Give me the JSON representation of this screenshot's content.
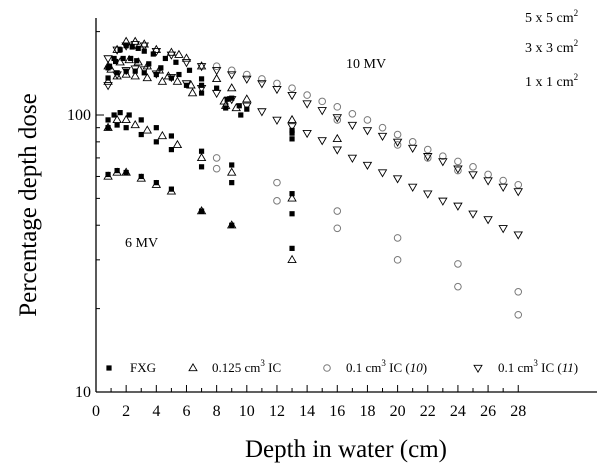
{
  "chart_data": {
    "type": "scatter",
    "xlabel": "Depth in water (cm)",
    "ylabel": "Percentage depth dose",
    "y_scale": "log",
    "xlim": [
      0,
      29.5
    ],
    "ylim": [
      10,
      200
    ],
    "x_ticks": [
      "0",
      "2",
      "4",
      "6",
      "8",
      "10",
      "12",
      "14",
      "16",
      "18",
      "20",
      "22",
      "24",
      "26",
      "28"
    ],
    "y_ticks": [
      "10",
      "100"
    ],
    "annotations": {
      "field_sizes": [
        "5 x 5 cm",
        "3 x 3 cm",
        "1 x 1 cm"
      ],
      "energy_10": "10 MV",
      "energy_6": "6 MV"
    },
    "legend": [
      {
        "label": "FXG",
        "marker": "filled-square"
      },
      {
        "label_main": "0.125 cm",
        "label_sup": "3",
        "label_tail": " IC",
        "marker": "triangle-up"
      },
      {
        "label_main": "0.1 cm",
        "label_sup": "3",
        "label_tail": " IC (",
        "label_italic": "10",
        "label_close": ")",
        "marker": "circle"
      },
      {
        "label_main": "0.1 cm",
        "label_sup": "3",
        "label_tail": " IC (",
        "label_italic": "11",
        "label_close": ")",
        "marker": "triangle-down"
      }
    ],
    "series": [
      {
        "name": "FXG",
        "marker": "filled-square",
        "points": [
          [
            0.8,
            148
          ],
          [
            1.2,
            160
          ],
          [
            1.6,
            172
          ],
          [
            2.0,
            178
          ],
          [
            2.4,
            176
          ],
          [
            2.8,
            174
          ],
          [
            3.2,
            170
          ],
          [
            3.8,
            166
          ],
          [
            4.6,
            160
          ],
          [
            5.3,
            155
          ],
          [
            6.2,
            145
          ],
          [
            7.0,
            135
          ],
          [
            8.0,
            125
          ],
          [
            9.0,
            115
          ],
          [
            10.0,
            105
          ],
          [
            13.0,
            86
          ],
          [
            0.9,
            150
          ],
          [
            1.3,
            156
          ],
          [
            1.8,
            160
          ],
          [
            2.3,
            160
          ],
          [
            2.7,
            157
          ],
          [
            3.5,
            153
          ],
          [
            4.3,
            148
          ],
          [
            5.5,
            140
          ],
          [
            7.0,
            128
          ],
          [
            8.7,
            114
          ],
          [
            9.5,
            108
          ],
          [
            13.0,
            88
          ],
          [
            0.8,
            136
          ],
          [
            1.4,
            142
          ],
          [
            2.0,
            144
          ],
          [
            2.6,
            144
          ],
          [
            3.2,
            142
          ],
          [
            4.0,
            140
          ],
          [
            5.0,
            136
          ],
          [
            6.0,
            128
          ],
          [
            7.0,
            120
          ],
          [
            8.6,
            106
          ],
          [
            9.6,
            100
          ],
          [
            13.0,
            82
          ],
          [
            0.8,
            96
          ],
          [
            1.2,
            100
          ],
          [
            1.6,
            102
          ],
          [
            2.2,
            100
          ],
          [
            3.0,
            96
          ],
          [
            4.0,
            90
          ],
          [
            5.0,
            84
          ],
          [
            7.0,
            74
          ],
          [
            9.0,
            66
          ],
          [
            13.0,
            52
          ],
          [
            0.8,
            90
          ],
          [
            1.4,
            92
          ],
          [
            2.0,
            90
          ],
          [
            3.0,
            85
          ],
          [
            4.0,
            80
          ],
          [
            5.0,
            75
          ],
          [
            7.0,
            65
          ],
          [
            9.0,
            57
          ],
          [
            13.0,
            44
          ],
          [
            0.8,
            61
          ],
          [
            1.4,
            63
          ],
          [
            2.0,
            62
          ],
          [
            3.0,
            60
          ],
          [
            4.0,
            57
          ],
          [
            5.0,
            54
          ],
          [
            7.0,
            45
          ],
          [
            9.0,
            40
          ],
          [
            13.0,
            33
          ]
        ]
      },
      {
        "name": "0.125 cm3 IC",
        "marker": "triangle-up",
        "points": [
          [
            0.8,
            150
          ],
          [
            1.4,
            172
          ],
          [
            2.0,
            184
          ],
          [
            2.6,
            184
          ],
          [
            3.2,
            180
          ],
          [
            4.0,
            172
          ],
          [
            5.0,
            168
          ],
          [
            5.5,
            165
          ],
          [
            6.0,
            160
          ],
          [
            7.0,
            150
          ],
          [
            8.0,
            135
          ],
          [
            9.0,
            125
          ],
          [
            10.0,
            114
          ],
          [
            13.0,
            96
          ],
          [
            16.0,
            82
          ],
          [
            1.0,
            146
          ],
          [
            1.6,
            155
          ],
          [
            2.2,
            158
          ],
          [
            2.8,
            155
          ],
          [
            3.4,
            150
          ],
          [
            4.2,
            145
          ],
          [
            4.8,
            138
          ],
          [
            5.4,
            132
          ],
          [
            6.3,
            128
          ],
          [
            8.5,
            112
          ],
          [
            9.3,
            106
          ],
          [
            0.8,
            132
          ],
          [
            1.4,
            138
          ],
          [
            2.0,
            140
          ],
          [
            2.6,
            138
          ],
          [
            3.4,
            136
          ],
          [
            4.4,
            132
          ],
          [
            6.4,
            120
          ],
          [
            8.6,
            108
          ],
          [
            0.8,
            90
          ],
          [
            1.4,
            96
          ],
          [
            2.0,
            96
          ],
          [
            2.6,
            92
          ],
          [
            3.4,
            88
          ],
          [
            4.4,
            84
          ],
          [
            5.4,
            78
          ],
          [
            7.0,
            70
          ],
          [
            9.0,
            62
          ],
          [
            13.0,
            50
          ],
          [
            0.8,
            60
          ],
          [
            1.4,
            62
          ],
          [
            2.0,
            62
          ],
          [
            3.0,
            59
          ],
          [
            4.0,
            56
          ],
          [
            5.0,
            53
          ],
          [
            7.0,
            45
          ],
          [
            9.0,
            40
          ],
          [
            13.0,
            30
          ]
        ]
      },
      {
        "name": "0.1 cm3 IC (10)",
        "marker": "circle",
        "points": [
          [
            8.0,
            150
          ],
          [
            9.0,
            145
          ],
          [
            10.0,
            140
          ],
          [
            11.0,
            135
          ],
          [
            12.0,
            130
          ],
          [
            13.0,
            125
          ],
          [
            14.0,
            118
          ],
          [
            15.0,
            112
          ],
          [
            16.0,
            107
          ],
          [
            17.0,
            101
          ],
          [
            18.0,
            96
          ],
          [
            19.0,
            90
          ],
          [
            20.0,
            85
          ],
          [
            21.0,
            80
          ],
          [
            22.0,
            75
          ],
          [
            23.0,
            71
          ],
          [
            24.0,
            68
          ],
          [
            25.0,
            65
          ],
          [
            26.0,
            61
          ],
          [
            27.0,
            58
          ],
          [
            28.0,
            56
          ],
          [
            16.0,
            96
          ],
          [
            20.0,
            78
          ],
          [
            22.0,
            70
          ],
          [
            24.0,
            63
          ],
          [
            8.0,
            70
          ],
          [
            12.0,
            57
          ],
          [
            16.0,
            45
          ],
          [
            20.0,
            36
          ],
          [
            24.0,
            29
          ],
          [
            28.0,
            23
          ],
          [
            8.0,
            64
          ],
          [
            12.0,
            49
          ],
          [
            16.0,
            39
          ],
          [
            20.0,
            30
          ],
          [
            24.0,
            24
          ],
          [
            28.0,
            19
          ]
        ]
      },
      {
        "name": "0.1 cm3 IC (11)",
        "marker": "triangle-down",
        "points": [
          [
            0.8,
            160
          ],
          [
            1.4,
            172
          ],
          [
            2.0,
            178
          ],
          [
            2.6,
            180
          ],
          [
            3.2,
            178
          ],
          [
            4.0,
            170
          ],
          [
            5.0,
            165
          ],
          [
            6.0,
            155
          ],
          [
            7.0,
            150
          ],
          [
            8.0,
            145
          ],
          [
            9.0,
            140
          ],
          [
            10.0,
            135
          ],
          [
            11.0,
            130
          ],
          [
            12.0,
            124
          ],
          [
            13.0,
            118
          ],
          [
            14.0,
            110
          ],
          [
            15.0,
            104
          ],
          [
            16.0,
            98
          ],
          [
            17.0,
            92
          ],
          [
            18.0,
            88
          ],
          [
            19.0,
            84
          ],
          [
            20.0,
            80
          ],
          [
            21.0,
            76
          ],
          [
            22.0,
            71
          ],
          [
            23.0,
            68
          ],
          [
            24.0,
            64
          ],
          [
            25.0,
            61
          ],
          [
            26.0,
            58
          ],
          [
            27.0,
            55
          ],
          [
            28.0,
            53
          ],
          [
            0.8,
            128
          ],
          [
            1.4,
            140
          ],
          [
            2.0,
            145
          ],
          [
            2.6,
            147
          ],
          [
            3.2,
            146
          ],
          [
            4.0,
            141
          ],
          [
            5.0,
            137
          ],
          [
            6.0,
            130
          ],
          [
            7.0,
            125
          ],
          [
            8.0,
            120
          ],
          [
            9.0,
            114
          ],
          [
            10.0,
            108
          ],
          [
            11.0,
            103
          ],
          [
            12.0,
            96
          ],
          [
            13.0,
            91
          ],
          [
            14.0,
            86
          ],
          [
            15.0,
            81
          ],
          [
            16.0,
            75
          ],
          [
            17.0,
            70
          ],
          [
            18.0,
            66
          ],
          [
            19.0,
            62
          ],
          [
            20.0,
            59
          ],
          [
            21.0,
            55
          ],
          [
            22.0,
            52
          ],
          [
            23.0,
            49
          ],
          [
            24.0,
            47
          ],
          [
            25.0,
            44
          ],
          [
            26.0,
            42
          ],
          [
            27.0,
            39
          ],
          [
            28.0,
            37
          ]
        ]
      }
    ]
  }
}
